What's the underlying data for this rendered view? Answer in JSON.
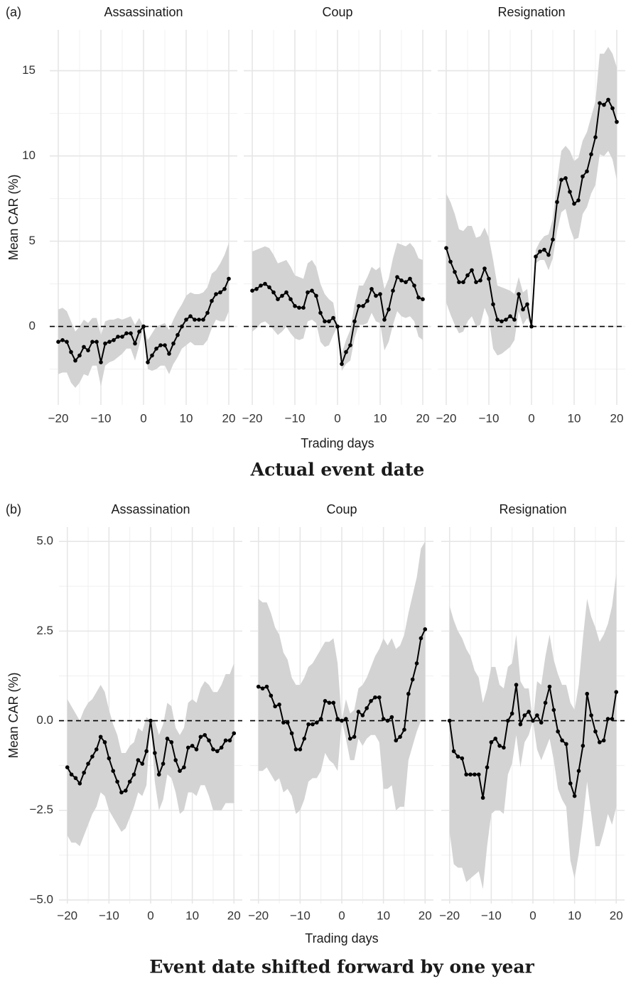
{
  "chart_data": [
    {
      "type": "line",
      "panel_label": "(a)",
      "title": "Actual event date",
      "xlabel": "Trading days",
      "ylabel": "Mean CAR (%)",
      "xlim": [
        -22,
        22
      ],
      "xticks": [
        {
          "value": -20,
          "label": "−20"
        },
        {
          "value": -10,
          "label": "−10"
        },
        0,
        10,
        20
      ],
      "minor_xticks": [
        -15,
        -5,
        5,
        15
      ],
      "ylim": [
        -4.6,
        17.4
      ],
      "yticks": [
        0,
        5,
        10,
        15
      ],
      "minor_yticks": [
        -2.5,
        2.5,
        7.5,
        12.5
      ],
      "reference_line": 0,
      "grid": true,
      "color": "#000000",
      "band_color": "#d3d3d3",
      "x": [
        -20,
        -19,
        -18,
        -17,
        -16,
        -15,
        -14,
        -13,
        -12,
        -11,
        -10,
        -9,
        -8,
        -7,
        -6,
        -5,
        -4,
        -3,
        -2,
        -1,
        0,
        1,
        2,
        3,
        4,
        5,
        6,
        7,
        8,
        9,
        10,
        11,
        12,
        13,
        14,
        15,
        16,
        17,
        18,
        19,
        20
      ],
      "facets": [
        {
          "name": "Assassination",
          "values": [
            -0.9,
            -0.8,
            -0.9,
            -1.5,
            -2.0,
            -1.7,
            -1.2,
            -1.4,
            -0.9,
            -0.9,
            -2.1,
            -1.0,
            -0.9,
            -0.8,
            -0.6,
            -0.6,
            -0.4,
            -0.4,
            -1.0,
            -0.3,
            0,
            -2.1,
            -1.7,
            -1.3,
            -1.1,
            -1.1,
            -1.6,
            -1.0,
            -0.5,
            0.0,
            0.4,
            0.6,
            0.4,
            0.4,
            0.4,
            0.8,
            1.5,
            1.9,
            2.0,
            2.2,
            2.8
          ],
          "upper": [
            1.0,
            1.1,
            0.9,
            0.3,
            -0.3,
            0.0,
            0.4,
            0.2,
            0.5,
            0.5,
            -0.5,
            0.3,
            0.4,
            0.4,
            0.5,
            0.4,
            0.5,
            0.6,
            0.1,
            0.5,
            0,
            -0.8,
            -0.4,
            0,
            0.1,
            0.2,
            -0.2,
            0.4,
            0.9,
            1.3,
            1.8,
            2.0,
            1.9,
            1.9,
            2.0,
            2.3,
            3.1,
            3.3,
            3.7,
            4.2,
            4.9
          ],
          "lower": [
            -2.8,
            -2.7,
            -2.7,
            -3.3,
            -3.6,
            -3.3,
            -2.8,
            -2.9,
            -2.3,
            -2.3,
            -3.5,
            -2.3,
            -2.1,
            -2.0,
            -1.8,
            -1.6,
            -1.3,
            -1.3,
            -2.0,
            -1.1,
            0,
            -2.5,
            -2.6,
            -2.5,
            -2.3,
            -2.3,
            -2.8,
            -2.2,
            -1.8,
            -1.3,
            -1.1,
            -0.9,
            -1.1,
            -1.1,
            -1.1,
            -0.8,
            -0.1,
            0.4,
            0.3,
            0.3,
            0.9
          ]
        },
        {
          "name": "Coup",
          "values": [
            2.1,
            2.2,
            2.4,
            2.5,
            2.3,
            2.0,
            1.6,
            1.8,
            2.0,
            1.6,
            1.2,
            1.1,
            1.1,
            2.0,
            2.1,
            1.8,
            0.8,
            0.3,
            0.3,
            0.5,
            0,
            -2.2,
            -1.5,
            -1.1,
            0.3,
            1.2,
            1.2,
            1.5,
            2.2,
            1.8,
            1.9,
            0.4,
            1.0,
            2.1,
            2.9,
            2.7,
            2.6,
            2.8,
            2.4,
            1.7,
            1.6
          ],
          "upper": [
            4.4,
            4.5,
            4.6,
            4.7,
            4.6,
            4.2,
            3.7,
            3.8,
            3.9,
            3.5,
            3.0,
            2.9,
            2.8,
            3.7,
            3.9,
            3.5,
            2.5,
            1.9,
            1.6,
            1.4,
            0,
            -1.6,
            -0.8,
            -0.2,
            1.3,
            2.4,
            2.4,
            2.9,
            3.5,
            3.3,
            3.5,
            2.2,
            2.8,
            4.0,
            4.9,
            4.8,
            4.7,
            4.9,
            4.6,
            4.0,
            3.9
          ],
          "lower": [
            -0.3,
            -0.1,
            0.2,
            0.3,
            0.1,
            -0.2,
            -0.5,
            -0.3,
            0.0,
            -0.4,
            -0.7,
            -0.8,
            -0.7,
            0.3,
            0.4,
            0.2,
            -0.9,
            -1.2,
            -1.1,
            -0.5,
            0,
            -2.6,
            -2.2,
            -2.0,
            -0.7,
            0.1,
            0.1,
            0.2,
            0.8,
            0.3,
            0.2,
            -1.4,
            -0.9,
            0.1,
            0.9,
            0.6,
            0.5,
            0.6,
            0.3,
            -0.6,
            -0.8
          ]
        },
        {
          "name": "Resignation",
          "values": [
            4.6,
            3.8,
            3.2,
            2.6,
            2.6,
            3.0,
            3.3,
            2.6,
            2.7,
            3.4,
            2.8,
            1.3,
            0.4,
            0.3,
            0.4,
            0.6,
            0.4,
            1.9,
            1.0,
            1.3,
            0,
            4.1,
            4.4,
            4.5,
            4.2,
            5.1,
            7.3,
            8.6,
            8.7,
            7.9,
            7.2,
            7.4,
            8.8,
            9.1,
            10.1,
            11.1,
            13.1,
            13.0,
            13.3,
            12.8,
            12.0
          ],
          "upper": [
            7.8,
            7.3,
            6.6,
            5.7,
            5.6,
            5.9,
            5.9,
            5.2,
            5.3,
            5.8,
            5.2,
            3.9,
            2.4,
            2.3,
            2.2,
            2.1,
            1.9,
            2.9,
            2.0,
            2.2,
            0,
            4.5,
            5.0,
            5.3,
            5.4,
            6.3,
            8.5,
            10.3,
            10.6,
            10.3,
            9.7,
            9.9,
            10.9,
            11.4,
            12.3,
            13.2,
            16.0,
            16.0,
            16.4,
            16.0,
            15.2
          ],
          "lower": [
            1.4,
            0.7,
            0.1,
            -0.4,
            -0.3,
            0.3,
            0.6,
            0.0,
            0.1,
            1.1,
            0.5,
            -1.3,
            -1.7,
            -1.6,
            -1.4,
            -1.2,
            -0.8,
            0.9,
            0.1,
            0.5,
            0,
            3.7,
            3.9,
            3.9,
            3.3,
            4.0,
            5.6,
            6.7,
            6.9,
            5.8,
            5.1,
            5.2,
            6.6,
            7.0,
            7.8,
            8.3,
            10.1,
            10.0,
            10.3,
            9.8,
            8.6
          ]
        }
      ]
    },
    {
      "type": "line",
      "panel_label": "(b)",
      "title": "Event date shifted forward by one year",
      "xlabel": "Trading days",
      "ylabel": "Mean CAR (%)",
      "xlim": [
        -22,
        22
      ],
      "xticks": [
        {
          "value": -20,
          "label": "−20"
        },
        {
          "value": -10,
          "label": "−10"
        },
        0,
        10,
        20
      ],
      "minor_xticks": [
        -15,
        -5,
        5,
        15
      ],
      "ylim": [
        -5.1,
        5.4
      ],
      "yticks": [
        {
          "value": -5,
          "label": "−5.0"
        },
        {
          "value": -2.5,
          "label": "−2.5"
        },
        {
          "value": 0,
          "label": "0.0"
        },
        2.5,
        {
          "value": 5,
          "label": "5.0"
        }
      ],
      "minor_yticks": [
        -3.75,
        -1.25,
        1.25,
        3.75
      ],
      "reference_line": 0,
      "grid": true,
      "color": "#000000",
      "band_color": "#d3d3d3",
      "x": [
        -20,
        -19,
        -18,
        -17,
        -16,
        -15,
        -14,
        -13,
        -12,
        -11,
        -10,
        -9,
        -8,
        -7,
        -6,
        -5,
        -4,
        -3,
        -2,
        -1,
        0,
        1,
        2,
        3,
        4,
        5,
        6,
        7,
        8,
        9,
        10,
        11,
        12,
        13,
        14,
        15,
        16,
        17,
        18,
        19,
        20
      ],
      "facets": [
        {
          "name": "Assassination",
          "values": [
            -1.3,
            -1.5,
            -1.6,
            -1.75,
            -1.45,
            -1.2,
            -1.0,
            -0.8,
            -0.45,
            -0.6,
            -1.05,
            -1.4,
            -1.7,
            -2.0,
            -1.95,
            -1.7,
            -1.5,
            -1.1,
            -1.2,
            -0.85,
            0,
            -0.9,
            -1.5,
            -1.2,
            -0.5,
            -0.6,
            -1.1,
            -1.4,
            -1.3,
            -0.75,
            -0.7,
            -0.8,
            -0.45,
            -0.4,
            -0.55,
            -0.8,
            -0.85,
            -0.75,
            -0.55,
            -0.55,
            -0.35
          ],
          "upper": [
            0.6,
            0.4,
            0.2,
            0.0,
            0.3,
            0.5,
            0.6,
            0.8,
            1.0,
            0.8,
            0.3,
            -0.1,
            -0.4,
            -0.9,
            -0.9,
            -0.7,
            -0.6,
            -0.2,
            -0.3,
            0.1,
            0,
            0.0,
            -0.4,
            -0.1,
            0.5,
            0.4,
            -0.2,
            -0.4,
            -0.2,
            0.5,
            0.6,
            0.5,
            0.9,
            1.1,
            1.0,
            0.8,
            0.8,
            1.0,
            1.3,
            1.3,
            1.6
          ],
          "lower": [
            -3.2,
            -3.4,
            -3.4,
            -3.5,
            -3.2,
            -2.9,
            -2.6,
            -2.4,
            -2.0,
            -2.1,
            -2.5,
            -2.7,
            -2.9,
            -3.1,
            -3.0,
            -2.7,
            -2.4,
            -2.0,
            -2.1,
            -1.8,
            0,
            -1.7,
            -2.5,
            -2.2,
            -1.5,
            -1.6,
            -2.0,
            -2.6,
            -2.5,
            -2.0,
            -2.0,
            -2.1,
            -1.8,
            -1.8,
            -2.1,
            -2.5,
            -2.5,
            -2.5,
            -2.3,
            -2.3,
            -2.3
          ]
        },
        {
          "name": "Coup",
          "values": [
            0.95,
            0.9,
            0.95,
            0.7,
            0.4,
            0.45,
            -0.05,
            -0.05,
            -0.35,
            -0.8,
            -0.8,
            -0.5,
            -0.1,
            -0.1,
            -0.05,
            0.05,
            0.55,
            0.5,
            0.5,
            0.05,
            0,
            0.05,
            -0.5,
            -0.45,
            0.25,
            0.15,
            0.35,
            0.55,
            0.65,
            0.65,
            0.05,
            0.0,
            0.1,
            -0.55,
            -0.45,
            -0.25,
            0.75,
            1.15,
            1.6,
            2.3,
            2.55
          ],
          "upper": [
            3.4,
            3.3,
            3.3,
            3.0,
            2.6,
            2.4,
            1.9,
            1.7,
            1.2,
            1.0,
            1.0,
            1.2,
            1.5,
            1.6,
            1.8,
            2.0,
            2.2,
            2.2,
            2.3,
            1.6,
            0,
            0.6,
            0.2,
            0.3,
            0.9,
            1.0,
            1.2,
            1.5,
            1.8,
            2.0,
            2.3,
            2.1,
            2.3,
            2.0,
            2.1,
            2.4,
            3.0,
            3.5,
            4.0,
            4.8,
            5.0
          ],
          "lower": [
            -1.4,
            -1.4,
            -1.3,
            -1.5,
            -1.7,
            -1.6,
            -2.0,
            -1.9,
            -2.1,
            -2.6,
            -2.5,
            -2.2,
            -1.7,
            -1.6,
            -1.6,
            -1.4,
            -0.9,
            -1.1,
            -1.2,
            -1.4,
            0,
            -0.5,
            -1.1,
            -1.1,
            -0.5,
            -0.7,
            -0.5,
            -0.4,
            -0.4,
            -0.6,
            -1.9,
            -1.9,
            -1.8,
            -2.5,
            -2.4,
            -2.4,
            -1.1,
            -0.7,
            -0.3,
            0.0,
            0.0
          ]
        },
        {
          "name": "Resignation",
          "values": [
            0.0,
            -0.85,
            -1.0,
            -1.05,
            -1.5,
            -1.5,
            -1.5,
            -1.5,
            -2.15,
            -1.3,
            -0.6,
            -0.5,
            -0.7,
            -0.75,
            0.0,
            0.2,
            1.0,
            -0.1,
            0.15,
            0.25,
            0,
            0.15,
            -0.05,
            0.5,
            0.95,
            0.3,
            -0.3,
            -0.55,
            -0.65,
            -1.75,
            -2.1,
            -1.4,
            -0.7,
            0.75,
            0.15,
            -0.3,
            -0.6,
            -0.55,
            0.05,
            0.05,
            0.8
          ],
          "upper": [
            3.2,
            2.8,
            2.5,
            2.3,
            2.0,
            1.8,
            1.4,
            1.2,
            0.5,
            0.9,
            1.5,
            1.5,
            1.0,
            0.9,
            1.5,
            1.6,
            2.4,
            1.1,
            0.9,
            0.9,
            0,
            1.1,
            1.0,
            1.8,
            2.4,
            1.7,
            1.3,
            1.0,
            1.0,
            0.5,
            0.3,
            1.0,
            2.3,
            3.4,
            2.9,
            2.6,
            2.2,
            2.4,
            2.7,
            3.2,
            4.1
          ],
          "lower": [
            -3.1,
            -4.0,
            -4.1,
            -4.1,
            -4.5,
            -4.4,
            -4.3,
            -4.2,
            -4.7,
            -3.5,
            -2.6,
            -2.5,
            -2.5,
            -2.6,
            -1.5,
            -1.2,
            -0.4,
            -1.3,
            -0.6,
            -0.4,
            0,
            -0.8,
            -1.1,
            -0.8,
            -0.5,
            -1.1,
            -1.9,
            -2.2,
            -2.4,
            -3.9,
            -4.4,
            -3.7,
            -2.8,
            -1.7,
            -2.6,
            -3.5,
            -3.5,
            -3.1,
            -2.6,
            -2.9,
            -2.4
          ]
        }
      ]
    }
  ]
}
